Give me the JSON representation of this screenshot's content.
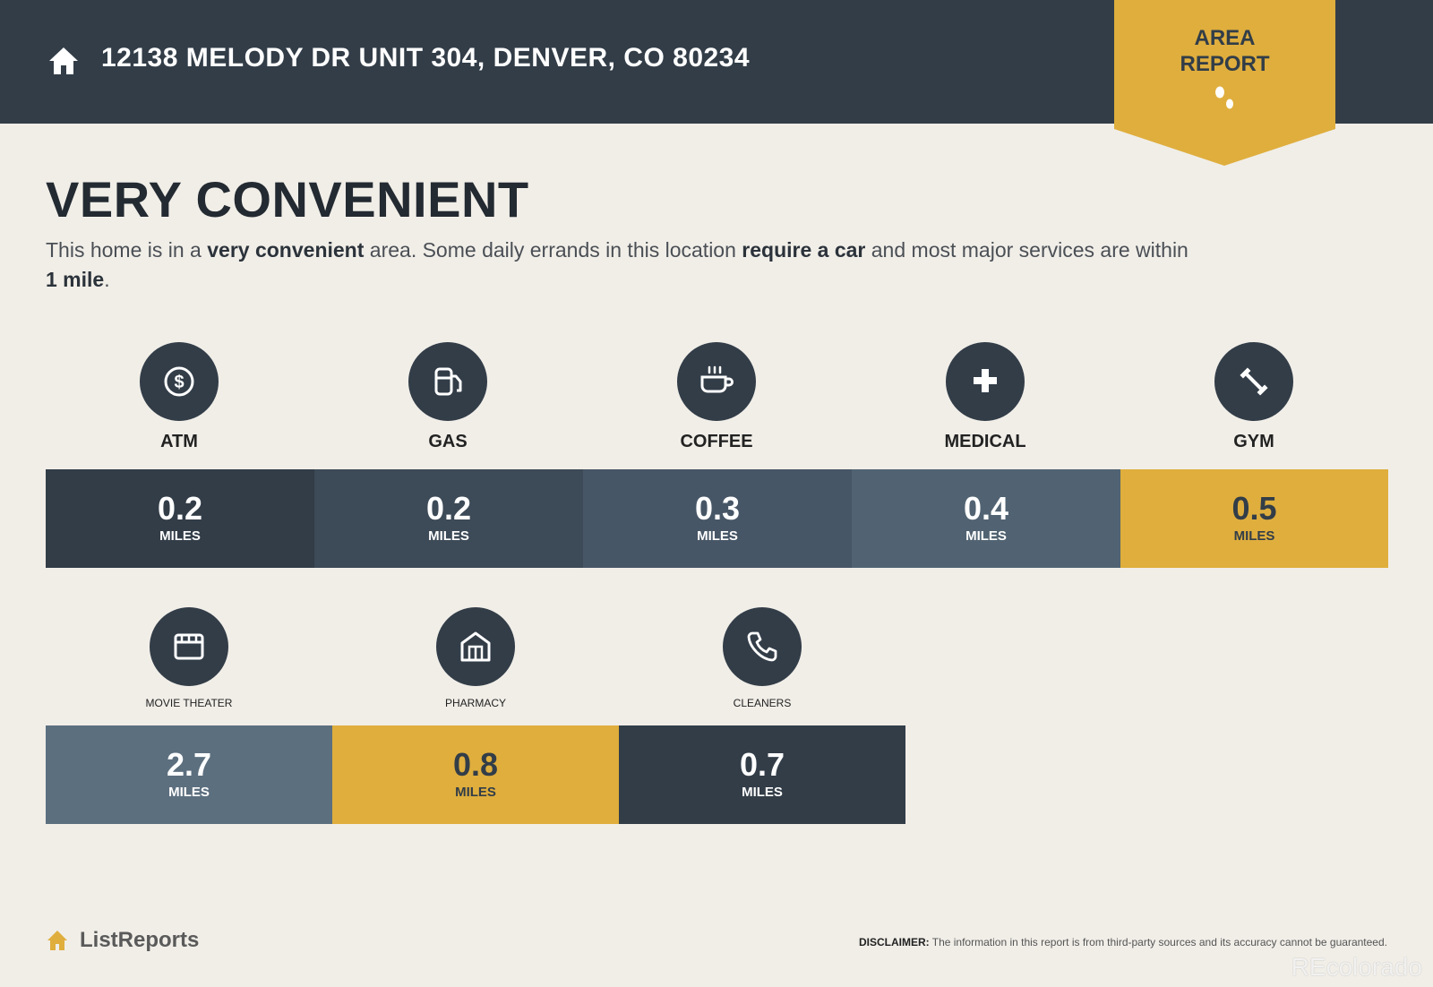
{
  "header": {
    "address": "12138 MELODY DR UNIT 304, DENVER, CO 80234",
    "ribbon_line1": "AREA",
    "ribbon_line2": "REPORT"
  },
  "main": {
    "headline": "VERY CONVENIENT",
    "summary": {
      "p1": "This home is in a ",
      "b1": "very convenient",
      "p2": " area. Some daily errands in this location ",
      "b2": "require a car",
      "p3": " and most major services are within ",
      "b3": "1 mile",
      "p4": "."
    }
  },
  "row1": [
    {
      "label": "ATM",
      "icon": "dollar-icon",
      "value": "0.2",
      "unit": "MILES",
      "color": "#323d48"
    },
    {
      "label": "GAS",
      "icon": "gas-pump-icon",
      "value": "0.2",
      "unit": "MILES",
      "color": "#3d4a57"
    },
    {
      "label": "COFFEE",
      "icon": "coffee-cup-icon",
      "value": "0.3",
      "unit": "MILES",
      "color": "#475666"
    },
    {
      "label": "MEDICAL",
      "icon": "plus-icon",
      "value": "0.4",
      "unit": "MILES",
      "color": "#516372"
    },
    {
      "label": "GYM",
      "icon": "dumbbell-icon",
      "value": "0.5",
      "unit": "MILES",
      "color": "#dfae3d"
    }
  ],
  "row2": [
    {
      "label": "MOVIE THEATER",
      "icon": "film-screen-icon",
      "value": "2.7",
      "unit": "MILES",
      "color": "#5c6f7f"
    },
    {
      "label": "PHARMACY",
      "icon": "pharmacy-building-icon",
      "value": "0.8",
      "unit": "MILES",
      "color": "#dfae3d"
    },
    {
      "label": "CLEANERS",
      "icon": "phone-icon",
      "value": "0.7",
      "unit": "MILES",
      "color": "#323d48"
    }
  ],
  "footer": {
    "brand": "ListReports",
    "disclaimer_label": "DISCLAIMER:",
    "disclaimer_text": " The information in this report is from third-party sources and its accuracy cannot be guaranteed.",
    "watermark": "REcolorado"
  }
}
